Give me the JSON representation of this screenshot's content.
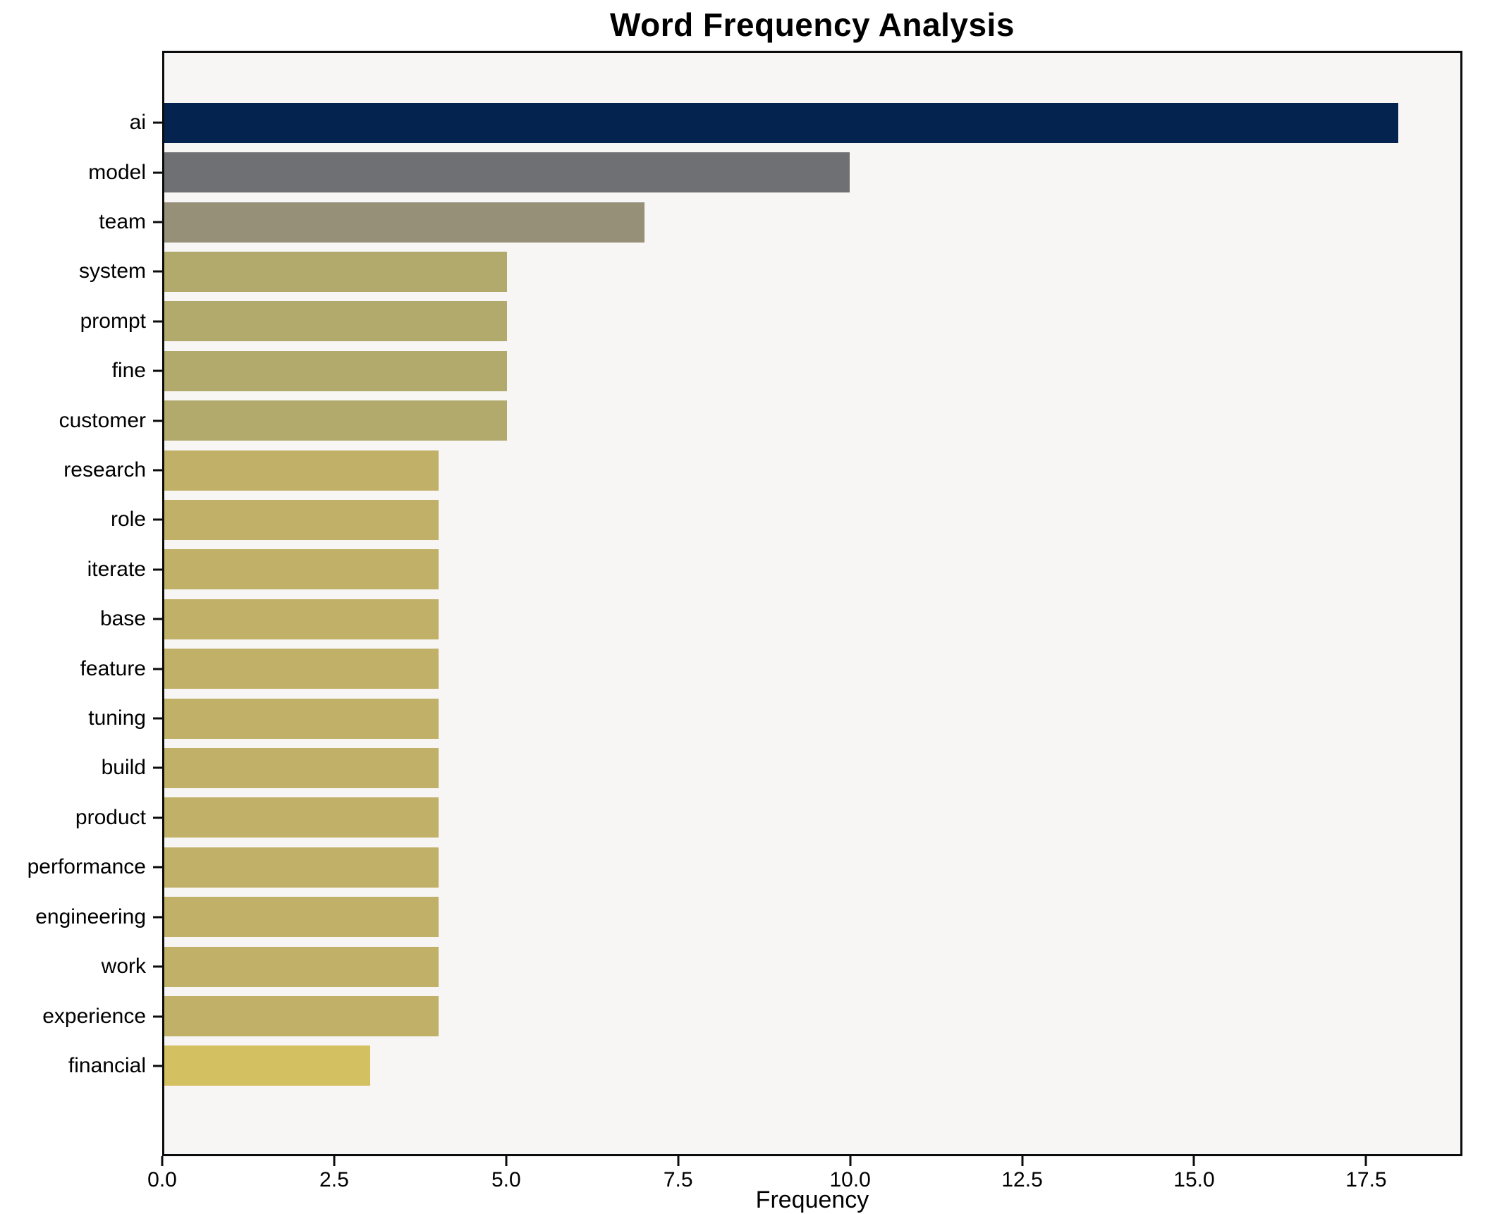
{
  "figure": {
    "title": "Word Frequency Analysis"
  },
  "chart_data": {
    "type": "bar",
    "orientation": "horizontal",
    "title": "Word Frequency Analysis",
    "xlabel": "Frequency",
    "ylabel": "",
    "xlim": [
      0,
      18.9
    ],
    "xticks": [
      0,
      2.5,
      5,
      7.5,
      10,
      12.5,
      15,
      17.5
    ],
    "xtick_labels": [
      "0.0",
      "2.5",
      "5.0",
      "7.5",
      "10.0",
      "12.5",
      "15.0",
      "17.5"
    ],
    "grid": false,
    "legend": false,
    "plot_background": "#f7f6f5",
    "spine_color": "#0c0c0c",
    "categories": [
      "ai",
      "model",
      "team",
      "system",
      "prompt",
      "fine",
      "customer",
      "research",
      "role",
      "iterate",
      "base",
      "feature",
      "tuning",
      "build",
      "product",
      "performance",
      "engineering",
      "work",
      "experience",
      "financial"
    ],
    "values": [
      18,
      10,
      7,
      5,
      5,
      5,
      5,
      4,
      4,
      4,
      4,
      4,
      4,
      4,
      4,
      4,
      4,
      4,
      4,
      3
    ],
    "bar_colors": [
      "#04234e",
      "#6f7073",
      "#959077",
      "#b2a96d",
      "#b2a96d",
      "#b2a96d",
      "#b2a96d",
      "#c1b067",
      "#c1b067",
      "#c1b067",
      "#c1b067",
      "#c1b067",
      "#c1b067",
      "#c1b067",
      "#c1b067",
      "#c1b067",
      "#c1b067",
      "#c1b067",
      "#c1b067",
      "#d3c060"
    ]
  }
}
